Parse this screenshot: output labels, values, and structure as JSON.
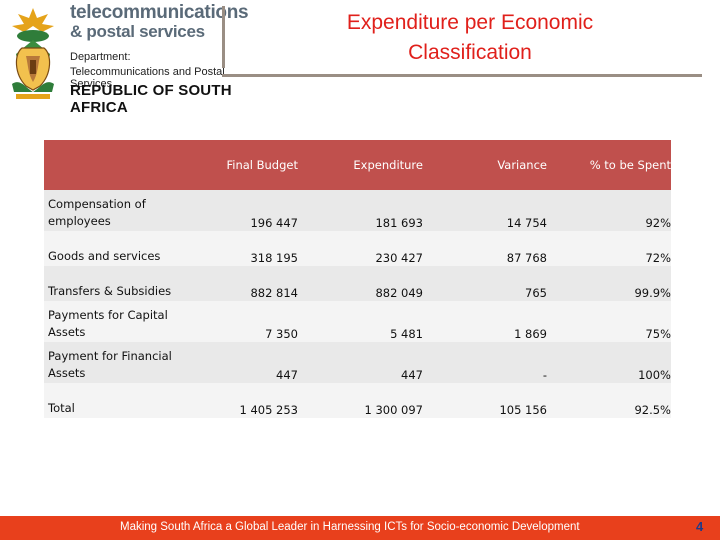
{
  "header": {
    "brand_line1": "telecommunications",
    "brand_line2": "& postal services",
    "dept_label": "Department:",
    "dept_name": "Telecommunications and Postal Services",
    "country": "REPUBLIC OF SOUTH AFRICA"
  },
  "title": {
    "line1": "Expenditure per Economic",
    "line2": "Classification"
  },
  "table": {
    "headers": [
      "",
      "Final Budget",
      "Expenditure",
      "Variance",
      "% to be Spent"
    ],
    "rows": [
      {
        "label": "Compensation of employees",
        "final_budget": "196 447",
        "expenditure": "181 693",
        "variance": "14 754",
        "pct": "92%"
      },
      {
        "label": "Goods and services",
        "final_budget": "318 195",
        "expenditure": "230 427",
        "variance": "87 768",
        "pct": "72%"
      },
      {
        "label": "Transfers & Subsidies",
        "final_budget": "882 814",
        "expenditure": "882 049",
        "variance": "765",
        "pct": "99.9%"
      },
      {
        "label": "Payments for Capital Assets",
        "final_budget": "7 350",
        "expenditure": "5 481",
        "variance": "1 869",
        "pct": "75%"
      },
      {
        "label": "Payment for Financial Assets",
        "final_budget": "447",
        "expenditure": "447",
        "variance": "-",
        "pct": "100%"
      },
      {
        "label": "Total",
        "final_budget": "1 405 253",
        "expenditure": "1 300 097",
        "variance": "105 156",
        "pct": "92.5%"
      }
    ]
  },
  "footer": {
    "text": "Making South Africa a Global Leader in Harnessing ICTs for Socio-economic Development",
    "page_number": "4"
  },
  "colors": {
    "title": "#e0201b",
    "header_fill": "#c0504d",
    "footer_bar": "#e8401c",
    "page_number": "#1e3a8a"
  }
}
